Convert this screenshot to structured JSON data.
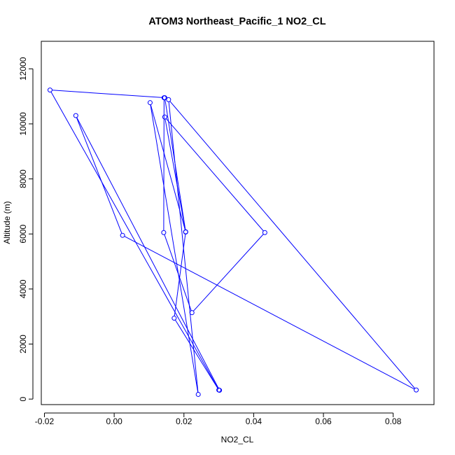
{
  "chart_data": {
    "type": "line",
    "title": "ATOM3 Northeast_Pacific_1 NO2_CL",
    "xlabel": "NO2_CL",
    "ylabel": "Altitude (m)",
    "xlim": [
      -0.0209,
      0.0917
    ],
    "ylim": [
      -200,
      13000
    ],
    "xticks": [
      -0.02,
      0.0,
      0.02,
      0.04,
      0.06,
      0.08
    ],
    "xtick_labels": [
      "-0.02",
      "0.00",
      "0.02",
      "0.04",
      "0.06",
      "0.08"
    ],
    "yticks": [
      0,
      2000,
      4000,
      6000,
      8000,
      10000,
      12000
    ],
    "ytick_labels": [
      "0",
      "2000",
      "4000",
      "6000",
      "8000",
      "10000",
      "12000"
    ],
    "grid": false,
    "series": [
      {
        "color": "#0000ff",
        "markers": "open-circle",
        "points": [
          {
            "x": 0.0302,
            "y": 320
          },
          {
            "x": -0.011,
            "y": 10300
          },
          {
            "x": 0.0024,
            "y": 5950
          },
          {
            "x": 0.0866,
            "y": 330
          },
          {
            "x": 0.0156,
            "y": 10880
          },
          {
            "x": 0.0241,
            "y": 170
          },
          {
            "x": 0.0103,
            "y": 10770
          },
          {
            "x": 0.0205,
            "y": 6080
          },
          {
            "x": 0.0145,
            "y": 10950
          },
          {
            "x": -0.0184,
            "y": 11230
          },
          {
            "x": 0.03,
            "y": 330
          },
          {
            "x": 0.0172,
            "y": 2940
          },
          {
            "x": 0.0205,
            "y": 6070
          },
          {
            "x": 0.0145,
            "y": 10250
          },
          {
            "x": 0.0432,
            "y": 6050
          },
          {
            "x": 0.0223,
            "y": 3140
          },
          {
            "x": 0.0142,
            "y": 6050
          },
          {
            "x": 0.0143,
            "y": 10950
          }
        ]
      }
    ]
  }
}
